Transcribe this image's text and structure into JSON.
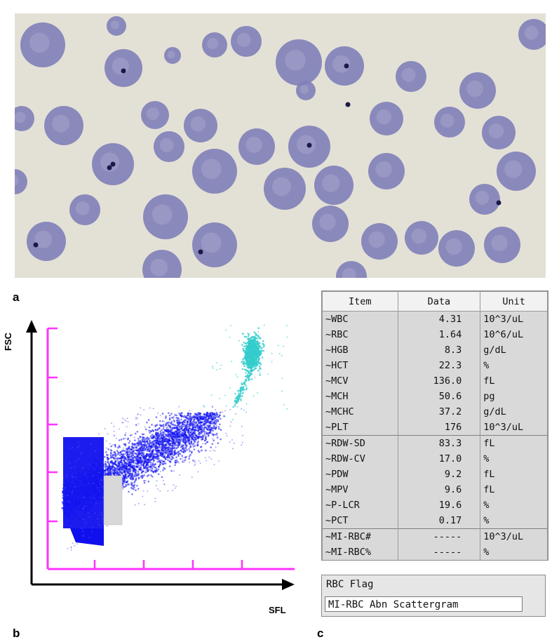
{
  "panels": {
    "a": "a",
    "b": "b",
    "c": "c"
  },
  "scattergram": {
    "y_axis_label": "FSC",
    "x_axis_label": "SFL"
  },
  "results_table": {
    "headers": [
      "Item",
      "Data",
      "Unit"
    ],
    "rows": [
      [
        "~WBC",
        "4.31",
        "10^3/uL"
      ],
      [
        "~RBC",
        "1.64",
        "10^6/uL"
      ],
      [
        "~HGB",
        "8.3",
        "g/dL"
      ],
      [
        "~HCT",
        "22.3",
        "%"
      ],
      [
        "~MCV",
        "136.0",
        "fL"
      ],
      [
        "~MCH",
        "50.6",
        "pg"
      ],
      [
        "~MCHC",
        "37.2",
        "g/dL"
      ],
      [
        "~PLT",
        "176",
        "10^3/uL"
      ],
      [
        "~RDW-SD",
        "83.3",
        "fL"
      ],
      [
        "~RDW-CV",
        "17.0",
        "%"
      ],
      [
        "~PDW",
        "9.2",
        "fL"
      ],
      [
        "~MPV",
        "9.6",
        "fL"
      ],
      [
        "~P-LCR",
        "19.6",
        "%"
      ],
      [
        "~PCT",
        "0.17",
        "%"
      ],
      [
        "~MI-RBC#",
        "-----",
        "10^3/uL"
      ],
      [
        "~MI-RBC%",
        "-----",
        "%"
      ]
    ]
  },
  "rbc_flag": {
    "title": "RBC Flag",
    "value": "MI-RBC Abn Scattergram"
  },
  "colors": {
    "magenta_axis": "#ff33ff",
    "dots_blue": "#1010ee",
    "dots_cyan": "#33cccc",
    "cell": "#7f7fb8"
  }
}
